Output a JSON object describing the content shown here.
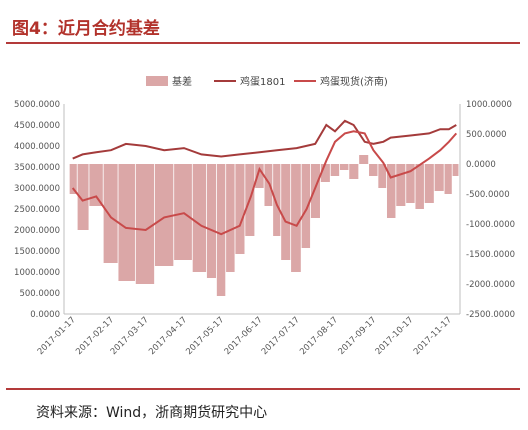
{
  "header": {
    "title": "图4：近月合约基差"
  },
  "footer": {
    "source": "资料来源：Wind，浙商期货研究中心"
  },
  "colors": {
    "basis": "#dba7a7",
    "futures": "#a43b3b",
    "spot": "#c84a4a",
    "accent": "#b33a3a"
  },
  "chart_data": {
    "type": "bar",
    "legend": {
      "placement": "top",
      "entries": [
        "基差",
        "鸡蛋1801",
        "鸡蛋现货(济南)"
      ]
    },
    "grid": false,
    "x_ticks": [
      "2017-01-17",
      "2017-02-17",
      "2017-03-17",
      "2017-04-17",
      "2017-05-17",
      "2017-06-17",
      "2017-07-17",
      "2017-08-17",
      "2017-09-17",
      "2017-10-17",
      "2017-11-17"
    ],
    "left_axis": {
      "ylim": [
        0,
        5000
      ],
      "ticks": [
        "0.0000",
        "500.0000",
        "1000.0000",
        "1500.0000",
        "2000.0000",
        "2500.0000",
        "3000.0000",
        "3500.0000",
        "4000.0000",
        "4500.0000",
        "5000.0000"
      ]
    },
    "right_axis": {
      "ylim": [
        -2500,
        1000
      ],
      "ticks": [
        "-2500.0000",
        "-2000.0000",
        "-1500.0000",
        "-1000.0000",
        "-500.0000",
        "0.0000",
        "500.0000",
        "1000.0000"
      ]
    },
    "series": [
      {
        "name": "基差",
        "type": "bar",
        "axis": "right",
        "points": [
          [
            "2017-01-17",
            -500
          ],
          [
            "2017-01-25",
            -1100
          ],
          [
            "2017-02-05",
            -700
          ],
          [
            "2017-02-17",
            -1650
          ],
          [
            "2017-03-01",
            -1950
          ],
          [
            "2017-03-17",
            -2000
          ],
          [
            "2017-04-01",
            -1700
          ],
          [
            "2017-04-17",
            -1600
          ],
          [
            "2017-05-01",
            -1800
          ],
          [
            "2017-05-10",
            -1900
          ],
          [
            "2017-05-17",
            -2200
          ],
          [
            "2017-05-25",
            -1800
          ],
          [
            "2017-06-01",
            -1500
          ],
          [
            "2017-06-10",
            -1200
          ],
          [
            "2017-06-17",
            -400
          ],
          [
            "2017-06-25",
            -700
          ],
          [
            "2017-07-01",
            -1200
          ],
          [
            "2017-07-08",
            -1600
          ],
          [
            "2017-07-17",
            -1800
          ],
          [
            "2017-07-25",
            -1400
          ],
          [
            "2017-08-01",
            -900
          ],
          [
            "2017-08-10",
            -300
          ],
          [
            "2017-08-17",
            -200
          ],
          [
            "2017-08-25",
            -100
          ],
          [
            "2017-09-01",
            -250
          ],
          [
            "2017-09-10",
            150
          ],
          [
            "2017-09-17",
            -200
          ],
          [
            "2017-09-25",
            -400
          ],
          [
            "2017-10-01",
            -900
          ],
          [
            "2017-10-10",
            -700
          ],
          [
            "2017-10-17",
            -650
          ],
          [
            "2017-10-25",
            -750
          ],
          [
            "2017-11-01",
            -650
          ],
          [
            "2017-11-10",
            -450
          ],
          [
            "2017-11-17",
            -500
          ],
          [
            "2017-11-23",
            -200
          ]
        ]
      },
      {
        "name": "鸡蛋1801",
        "type": "line",
        "axis": "left",
        "points": [
          [
            "2017-01-17",
            3700
          ],
          [
            "2017-01-25",
            3800
          ],
          [
            "2017-02-05",
            3850
          ],
          [
            "2017-02-17",
            3900
          ],
          [
            "2017-03-01",
            4050
          ],
          [
            "2017-03-17",
            4000
          ],
          [
            "2017-04-01",
            3900
          ],
          [
            "2017-04-17",
            3950
          ],
          [
            "2017-05-01",
            3800
          ],
          [
            "2017-05-17",
            3750
          ],
          [
            "2017-06-01",
            3800
          ],
          [
            "2017-06-17",
            3850
          ],
          [
            "2017-07-01",
            3900
          ],
          [
            "2017-07-17",
            3950
          ],
          [
            "2017-08-01",
            4050
          ],
          [
            "2017-08-10",
            4500
          ],
          [
            "2017-08-17",
            4350
          ],
          [
            "2017-08-25",
            4600
          ],
          [
            "2017-09-01",
            4500
          ],
          [
            "2017-09-10",
            4100
          ],
          [
            "2017-09-17",
            4050
          ],
          [
            "2017-09-25",
            4100
          ],
          [
            "2017-10-01",
            4200
          ],
          [
            "2017-10-17",
            4250
          ],
          [
            "2017-11-01",
            4300
          ],
          [
            "2017-11-10",
            4400
          ],
          [
            "2017-11-17",
            4400
          ],
          [
            "2017-11-23",
            4500
          ]
        ]
      },
      {
        "name": "鸡蛋现货(济南)",
        "type": "line",
        "axis": "left",
        "points": [
          [
            "2017-01-17",
            3000
          ],
          [
            "2017-01-25",
            2700
          ],
          [
            "2017-02-05",
            2800
          ],
          [
            "2017-02-17",
            2300
          ],
          [
            "2017-03-01",
            2050
          ],
          [
            "2017-03-17",
            2000
          ],
          [
            "2017-04-01",
            2300
          ],
          [
            "2017-04-17",
            2400
          ],
          [
            "2017-05-01",
            2100
          ],
          [
            "2017-05-17",
            1900
          ],
          [
            "2017-06-01",
            2100
          ],
          [
            "2017-06-10",
            2800
          ],
          [
            "2017-06-17",
            3450
          ],
          [
            "2017-06-25",
            3100
          ],
          [
            "2017-07-01",
            2600
          ],
          [
            "2017-07-08",
            2200
          ],
          [
            "2017-07-17",
            2100
          ],
          [
            "2017-07-25",
            2500
          ],
          [
            "2017-08-01",
            3000
          ],
          [
            "2017-08-10",
            3650
          ],
          [
            "2017-08-17",
            4100
          ],
          [
            "2017-08-25",
            4300
          ],
          [
            "2017-09-01",
            4350
          ],
          [
            "2017-09-10",
            4300
          ],
          [
            "2017-09-17",
            3900
          ],
          [
            "2017-09-25",
            3600
          ],
          [
            "2017-10-01",
            3250
          ],
          [
            "2017-10-17",
            3400
          ],
          [
            "2017-11-01",
            3700
          ],
          [
            "2017-11-10",
            3900
          ],
          [
            "2017-11-17",
            4100
          ],
          [
            "2017-11-23",
            4300
          ]
        ]
      }
    ]
  }
}
